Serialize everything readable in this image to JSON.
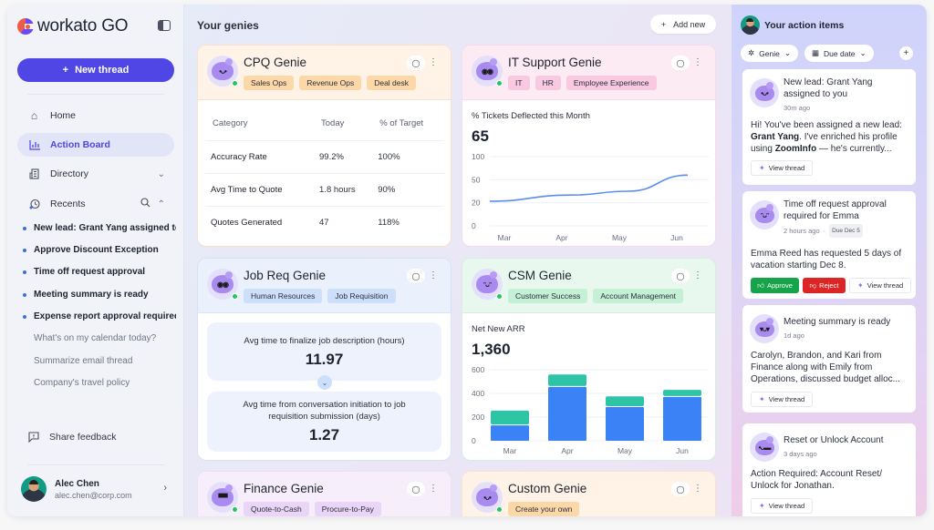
{
  "sidebar": {
    "logo_text": "workato GO",
    "new_thread_label": "New thread",
    "nav": [
      {
        "label": "Home",
        "icon": "home-icon"
      },
      {
        "label": "Action Board",
        "icon": "chart-icon",
        "active": true
      },
      {
        "label": "Directory",
        "icon": "building-icon"
      },
      {
        "label": "Recents",
        "icon": "history-icon"
      }
    ],
    "recents": [
      {
        "label": "New lead: Grant Yang assigned to you",
        "unread": true
      },
      {
        "label": "Approve Discount Exception",
        "unread": true
      },
      {
        "label": "Time off request approval",
        "unread": true
      },
      {
        "label": "Meeting summary is ready",
        "unread": true
      },
      {
        "label": "Expense report approval required",
        "unread": true
      },
      {
        "label": "What's on my calendar today?",
        "unread": false
      },
      {
        "label": "Summarize email thread",
        "unread": false
      },
      {
        "label": "Company's travel policy",
        "unread": false
      }
    ],
    "feedback_label": "Share feedback",
    "user": {
      "name": "Alec Chen",
      "email": "alec.chen@corp.com"
    }
  },
  "main": {
    "title": "Your genies",
    "add_new_label": "Add new",
    "cards": {
      "cpq": {
        "title": "CPQ Genie",
        "tags": [
          "Sales Ops",
          "Revenue Ops",
          "Deal desk"
        ],
        "table": {
          "headers": [
            "Category",
            "Today",
            "% of Target"
          ],
          "rows": [
            [
              "Accuracy Rate",
              "99.2%",
              "100%"
            ],
            [
              "Avg Time to Quote",
              "1.8 hours",
              "90%"
            ],
            [
              "Quotes Generated",
              "47",
              "118%"
            ]
          ]
        }
      },
      "it": {
        "title": "IT Support Genie",
        "tags": [
          "IT",
          "HR",
          "Employee Experience"
        ],
        "metric_label": "% Tickets Deflected this Month",
        "metric_value": "65"
      },
      "job": {
        "title": "Job Req Genie",
        "tags": [
          "Human Resources",
          "Job Requisition"
        ],
        "stats": [
          {
            "label": "Avg time to finalize job description (hours)",
            "value": "11.97"
          },
          {
            "label": "Avg time from conversation initiation to job requisition submission (days)",
            "value": "1.27"
          }
        ]
      },
      "csm": {
        "title": "CSM Genie",
        "tags": [
          "Customer Success",
          "Account Management"
        ],
        "metric_label": "Net New ARR",
        "metric_value": "1,360"
      },
      "finance": {
        "title": "Finance Genie",
        "tags": [
          "Quote-to-Cash",
          "Procure-to-Pay"
        ]
      },
      "custom": {
        "title": "Custom Genie",
        "tags": [
          "Create your own"
        ]
      }
    }
  },
  "right_panel": {
    "title": "Your action items",
    "filters": [
      "Genie",
      "Due date"
    ],
    "items": [
      {
        "title": "New lead: Grant Yang assigned to you",
        "time": "30m ago",
        "body_parts": [
          "Hi! You've been assigned a new lead: ",
          "Grant Yang",
          ". I've enriched his profile using ",
          "ZoomInfo",
          " — he's currently..."
        ],
        "view_label": "View thread"
      },
      {
        "title": "Time off request approval required for Emma",
        "time": "2 hours ago",
        "due": "Due Dec 5",
        "body": "Emma Reed has requested 5 days of vacation starting Dec 8.",
        "approve_label": "Approve",
        "reject_label": "Reject",
        "view_label": "View thread"
      },
      {
        "title": "Meeting summary is ready",
        "time": "1d ago",
        "body": "Carolyn, Brandon, and Kari from Finance along with Emily from Operations, discussed budget alloc...",
        "view_label": "View thread"
      },
      {
        "title": "Reset or Unlock Account",
        "time": "3 days ago",
        "body": "Action Required: Account Reset/ Unlock for Jonathan.",
        "view_label": "View thread"
      }
    ]
  },
  "colors": {
    "brand": "#4f46e5",
    "line": "#5b8def",
    "bar_base": "#3b82f6",
    "bar_top": "#2ec4a6",
    "approve": "#16a34a",
    "reject": "#dc2626"
  },
  "chart_data": [
    {
      "type": "line",
      "title": "% Tickets Deflected this Month",
      "categories": [
        "Mar",
        "Apr",
        "May",
        "Jun"
      ],
      "y_ticks": [
        0,
        20,
        50,
        100
      ],
      "values": [
        22,
        30,
        35,
        60
      ],
      "ylim": [
        0,
        100
      ],
      "grid": true
    },
    {
      "type": "bar",
      "stacked": true,
      "title": "Net New ARR",
      "categories": [
        "Mar",
        "Apr",
        "May",
        "Jun"
      ],
      "y_ticks": [
        0,
        200,
        400,
        600
      ],
      "ylim": [
        0,
        600
      ],
      "series": [
        {
          "name": "base",
          "values": [
            130,
            455,
            285,
            370
          ]
        },
        {
          "name": "top",
          "values": [
            125,
            105,
            90,
            60
          ]
        }
      ],
      "grid": true
    }
  ]
}
